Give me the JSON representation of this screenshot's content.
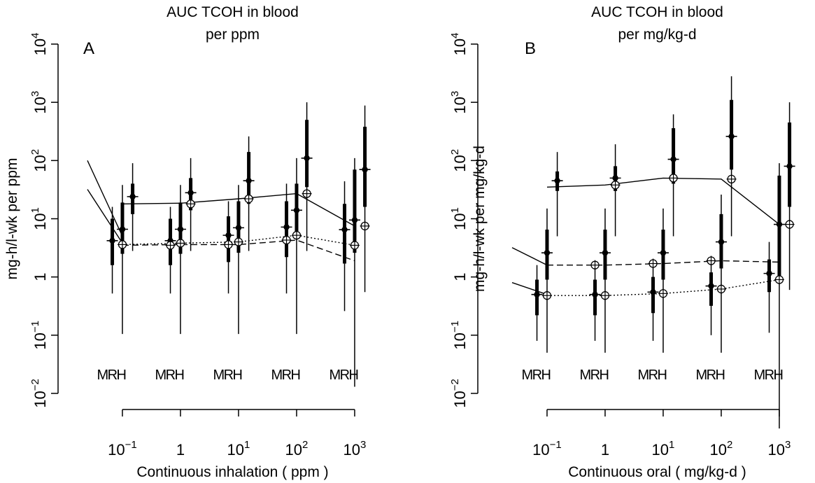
{
  "chart_data": [
    {
      "type": "scatter",
      "panel_letter": "A",
      "title_lines": [
        "AUC TCOH in blood",
        "per ppm"
      ],
      "xlabel": "Continuous inhalation ( ppm )",
      "ylabel": "mg-h/l-wk per ppm",
      "x_scale": "log10",
      "y_scale": "log10",
      "xlim": [
        0.025,
        2500
      ],
      "ylim": [
        0.01,
        10000
      ],
      "x_ticks": [
        0.1,
        1,
        10,
        100,
        1000
      ],
      "x_tick_labels": [
        {
          "base": "10",
          "exp": "−1"
        },
        {
          "base": "1",
          "exp": ""
        },
        {
          "base": "10",
          "exp": "1"
        },
        {
          "base": "10",
          "exp": "2"
        },
        {
          "base": "10",
          "exp": "3"
        }
      ],
      "y_ticks": [
        0.01,
        0.1,
        1,
        10,
        100,
        1000,
        10000
      ],
      "y_tick_labels": [
        {
          "base": "10",
          "exp": "−2"
        },
        {
          "base": "10",
          "exp": "−1"
        },
        {
          "base": "1",
          "exp": ""
        },
        {
          "base": "10",
          "exp": "1"
        },
        {
          "base": "10",
          "exp": "2"
        },
        {
          "base": "10",
          "exp": "3"
        },
        {
          "base": "10",
          "exp": "4"
        }
      ],
      "group_label": "MRH",
      "species": [
        "M",
        "R",
        "H"
      ],
      "x_offsets": [
        0.67,
        1.0,
        1.5
      ],
      "doses": [
        0.1,
        1,
        10,
        100,
        1000
      ],
      "intervals": {
        "M": [
          {
            "q025": 0.52,
            "q25": 1.6,
            "median": 4.2,
            "q75": 10,
            "q975": 16
          },
          {
            "q025": 0.52,
            "q25": 1.6,
            "median": 4.2,
            "q75": 10,
            "q975": 16
          },
          {
            "q025": 0.52,
            "q25": 1.8,
            "median": 5.2,
            "q75": 11,
            "q975": 20
          },
          {
            "q025": 0.52,
            "q25": 2.2,
            "median": 7.2,
            "q75": 20,
            "q975": 40
          },
          {
            "q025": 0.26,
            "q25": 1.7,
            "median": 6.5,
            "q75": 18,
            "q975": 44
          }
        ],
        "R": [
          {
            "q025": 0.105,
            "q25": 2.5,
            "median": 6.6,
            "q75": 19,
            "q975": 38
          },
          {
            "q025": 0.105,
            "q25": 2.5,
            "median": 6.6,
            "q75": 19,
            "q975": 38
          },
          {
            "q025": 0.105,
            "q25": 2.6,
            "median": 7.0,
            "q75": 20,
            "q975": 38
          },
          {
            "q025": 0.105,
            "q25": 4.5,
            "median": 14,
            "q75": 40,
            "q975": 110
          },
          {
            "q025": 0.013,
            "q25": 2.6,
            "median": 9.5,
            "q75": 70,
            "q975": 110
          }
        ],
        "H": [
          {
            "q025": 2.8,
            "q25": 12,
            "median": 24,
            "q75": 40,
            "q975": 90
          },
          {
            "q025": 2.8,
            "q25": 14,
            "median": 28,
            "q75": 50,
            "q975": 110
          },
          {
            "q025": 2.8,
            "q25": 18,
            "median": 45,
            "q75": 140,
            "q975": 260
          },
          {
            "q025": 2.8,
            "q25": 35,
            "median": 110,
            "q75": 500,
            "q975": 1000
          },
          {
            "q025": 0.55,
            "q25": 16,
            "median": 70,
            "q75": 380,
            "q975": 880
          }
        ]
      },
      "lines": [
        {
          "style": "solid",
          "x": [
            0.1,
            1,
            10,
            100,
            1000
          ],
          "y": [
            18,
            18.5,
            22,
            27,
            7.5
          ],
          "markers": [
            {
              "x": 1.5,
              "y": 18
            },
            {
              "x": 15,
              "y": 22
            },
            {
              "x": 150,
              "y": 27
            },
            {
              "x": 1500,
              "y": 7.5
            }
          ]
        },
        {
          "style": "solid",
          "x": [
            0.025,
            0.1
          ],
          "y": [
            100,
            5
          ]
        },
        {
          "style": "solid",
          "x": [
            0.025,
            0.1
          ],
          "y": [
            32,
            3.8
          ]
        },
        {
          "style": "dashed",
          "x": [
            0.1,
            1,
            10,
            100,
            1000
          ],
          "y": [
            3.5,
            3.6,
            3.6,
            4.3,
            1.9
          ],
          "markers": [
            {
              "x": 0.67,
              "y": 3.5
            },
            {
              "x": 6.7,
              "y": 3.6
            },
            {
              "x": 67,
              "y": 4.3
            }
          ]
        },
        {
          "style": "dotted",
          "x": [
            0.1,
            1,
            10,
            100,
            1000
          ],
          "y": [
            3.6,
            3.8,
            4.0,
            5.2,
            3.5
          ],
          "markers": [
            {
              "x": 0.1,
              "y": 3.6
            },
            {
              "x": 1,
              "y": 3.8
            },
            {
              "x": 10,
              "y": 4.0
            },
            {
              "x": 100,
              "y": 5.2
            },
            {
              "x": 1000,
              "y": 3.5
            }
          ]
        }
      ]
    },
    {
      "type": "scatter",
      "panel_letter": "B",
      "title_lines": [
        "AUC TCOH in blood",
        "per mg/kg-d"
      ],
      "xlabel": "Continuous oral ( mg/kg-d )",
      "ylabel": "mg-h/l-wk per mg/kg-d",
      "x_scale": "log10",
      "y_scale": "log10",
      "xlim": [
        0.025,
        2500
      ],
      "ylim": [
        0.01,
        10000
      ],
      "x_ticks": [
        0.1,
        1,
        10,
        100,
        1000
      ],
      "x_tick_labels": [
        {
          "base": "10",
          "exp": "−1"
        },
        {
          "base": "1",
          "exp": ""
        },
        {
          "base": "10",
          "exp": "1"
        },
        {
          "base": "10",
          "exp": "2"
        },
        {
          "base": "10",
          "exp": "3"
        }
      ],
      "y_ticks": [
        0.01,
        0.1,
        1,
        10,
        100,
        1000,
        10000
      ],
      "y_tick_labels": [
        {
          "base": "10",
          "exp": "−2"
        },
        {
          "base": "10",
          "exp": "−1"
        },
        {
          "base": "1",
          "exp": ""
        },
        {
          "base": "10",
          "exp": "1"
        },
        {
          "base": "10",
          "exp": "2"
        },
        {
          "base": "10",
          "exp": "3"
        },
        {
          "base": "10",
          "exp": "4"
        }
      ],
      "group_label": "MRH",
      "species": [
        "M",
        "R",
        "H"
      ],
      "x_offsets": [
        0.67,
        1.0,
        1.5
      ],
      "doses": [
        0.1,
        1,
        10,
        100,
        1000
      ],
      "intervals": {
        "M": [
          {
            "q025": 0.08,
            "q25": 0.22,
            "median": 0.5,
            "q75": 0.9,
            "q975": 1.6
          },
          {
            "q025": 0.08,
            "q25": 0.22,
            "median": 0.5,
            "q75": 0.9,
            "q975": 1.6
          },
          {
            "q025": 0.08,
            "q25": 0.24,
            "median": 0.55,
            "q75": 1.0,
            "q975": 1.6
          },
          {
            "q025": 0.1,
            "q25": 0.32,
            "median": 0.7,
            "q75": 1.2,
            "q975": 2.0
          },
          {
            "q025": 0.11,
            "q25": 0.55,
            "median": 1.15,
            "q75": 2.0,
            "q975": 4.0
          }
        ],
        "R": [
          {
            "q025": 0.05,
            "q25": 0.9,
            "median": 2.6,
            "q75": 6.5,
            "q975": 15
          },
          {
            "q025": 0.05,
            "q25": 0.9,
            "median": 2.6,
            "q75": 6.5,
            "q975": 15
          },
          {
            "q025": 0.05,
            "q25": 0.9,
            "median": 2.6,
            "q75": 6.5,
            "q975": 15
          },
          {
            "q025": 0.05,
            "q25": 1.4,
            "median": 4.0,
            "q75": 12,
            "q975": 26
          },
          {
            "q025": 0.0025,
            "q25": 0.9,
            "median": 8.0,
            "q75": 55,
            "q975": 90
          }
        ],
        "H": [
          {
            "q025": 5,
            "q25": 30,
            "median": 45,
            "q75": 65,
            "q975": 140
          },
          {
            "q025": 5,
            "q25": 30,
            "median": 50,
            "q75": 80,
            "q975": 190
          },
          {
            "q025": 5,
            "q25": 40,
            "median": 105,
            "q75": 360,
            "q975": 620
          },
          {
            "q025": 5,
            "q25": 70,
            "median": 260,
            "q75": 1100,
            "q975": 2800
          },
          {
            "q025": 0.6,
            "q25": 16,
            "median": 80,
            "q75": 450,
            "q975": 1000
          }
        ]
      },
      "lines": [
        {
          "style": "solid",
          "x": [
            0.1,
            1,
            10,
            100,
            1000
          ],
          "y": [
            35,
            38,
            50,
            48,
            8
          ],
          "markers": [
            {
              "x": 1.5,
              "y": 38
            },
            {
              "x": 15,
              "y": 50
            },
            {
              "x": 150,
              "y": 48
            },
            {
              "x": 1500,
              "y": 8
            }
          ]
        },
        {
          "style": "solid",
          "x": [
            0.025,
            0.1
          ],
          "y": [
            3.2,
            1.6
          ]
        },
        {
          "style": "solid",
          "x": [
            0.025,
            0.1
          ],
          "y": [
            0.8,
            0.5
          ]
        },
        {
          "style": "dashed",
          "x": [
            0.1,
            1,
            10,
            100,
            1000
          ],
          "y": [
            1.6,
            1.6,
            1.7,
            1.9,
            1.8
          ],
          "markers": [
            {
              "x": 0.67,
              "y": 1.6
            },
            {
              "x": 6.7,
              "y": 1.7
            },
            {
              "x": 67,
              "y": 1.9
            }
          ]
        },
        {
          "style": "dotted",
          "x": [
            0.1,
            1,
            10,
            100,
            1000
          ],
          "y": [
            0.48,
            0.48,
            0.52,
            0.62,
            0.9
          ],
          "markers": [
            {
              "x": 0.1,
              "y": 0.48
            },
            {
              "x": 1,
              "y": 0.48
            },
            {
              "x": 10,
              "y": 0.52
            },
            {
              "x": 100,
              "y": 0.62
            },
            {
              "x": 1000,
              "y": 0.9
            }
          ]
        }
      ]
    }
  ]
}
